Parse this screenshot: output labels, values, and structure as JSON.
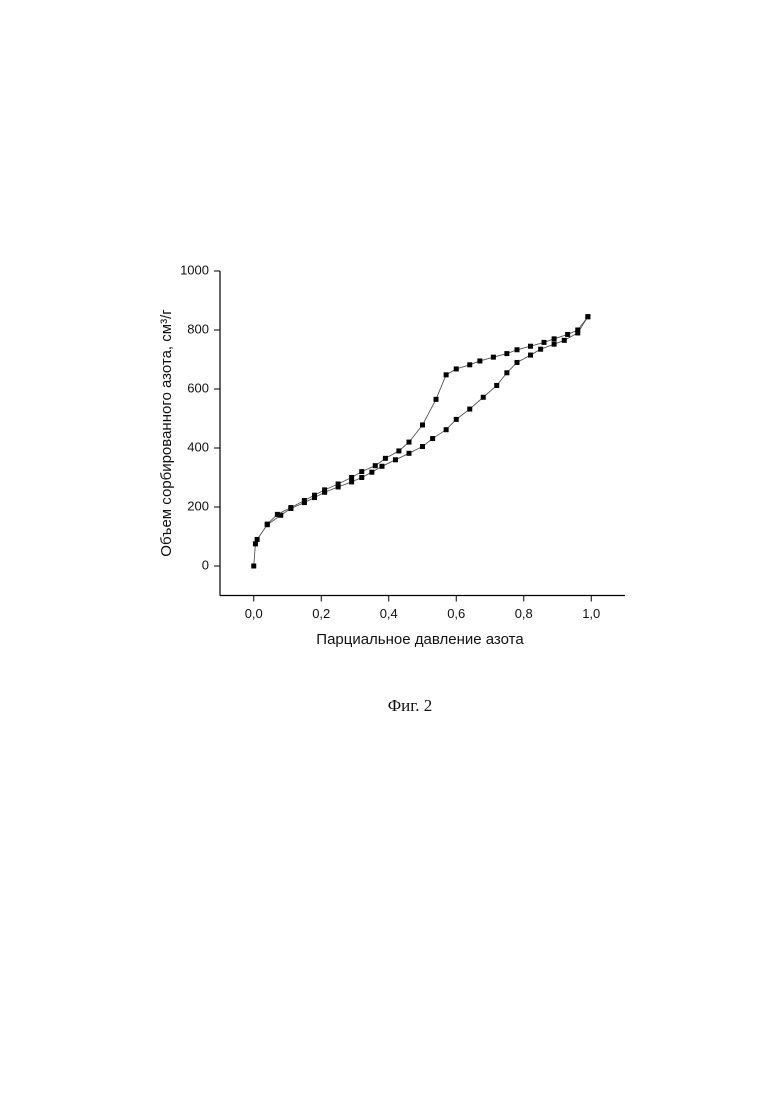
{
  "chart_data": {
    "type": "line",
    "xlabel": "Парциальное давление азота",
    "ylabel": "Объем сорбированного азота, см³/г",
    "caption": "Фиг. 2",
    "xlim": [
      -0.1,
      1.1
    ],
    "ylim": [
      -100,
      1000
    ],
    "xticks": [
      {
        "value": 0,
        "label": "0,0"
      },
      {
        "value": 0.2,
        "label": "0,2"
      },
      {
        "value": 0.4,
        "label": "0,4"
      },
      {
        "value": 0.6,
        "label": "0,6"
      },
      {
        "value": 0.8,
        "label": "0,8"
      },
      {
        "value": 1.0,
        "label": "1,0"
      }
    ],
    "yticks": [
      0,
      200,
      400,
      600,
      800,
      1000
    ],
    "series": [
      {
        "color": "#000000",
        "x": [
          0.0,
          0.005,
          0.01,
          0.04,
          0.08,
          0.11,
          0.15,
          0.18,
          0.21,
          0.25,
          0.29,
          0.32,
          0.35,
          0.38,
          0.42,
          0.46,
          0.5,
          0.53,
          0.57,
          0.6,
          0.64,
          0.68,
          0.72,
          0.75,
          0.78,
          0.82,
          0.85,
          0.89,
          0.92,
          0.96,
          0.99
        ],
        "values": [
          0,
          75,
          90,
          140,
          172,
          195,
          215,
          232,
          250,
          268,
          285,
          300,
          318,
          338,
          360,
          382,
          405,
          432,
          462,
          497,
          532,
          572,
          612,
          655,
          690,
          715,
          735,
          752,
          765,
          790,
          845
        ]
      },
      {
        "color": "#000000",
        "x": [
          0.99,
          0.96,
          0.93,
          0.89,
          0.86,
          0.82,
          0.78,
          0.75,
          0.71,
          0.67,
          0.64,
          0.6,
          0.57,
          0.54,
          0.5,
          0.46,
          0.43,
          0.39,
          0.36,
          0.32,
          0.29,
          0.25,
          0.21,
          0.18,
          0.15,
          0.11,
          0.07,
          0.04
        ],
        "values": [
          845,
          800,
          785,
          770,
          758,
          745,
          733,
          720,
          708,
          695,
          682,
          668,
          648,
          565,
          478,
          420,
          390,
          365,
          340,
          320,
          300,
          278,
          258,
          240,
          222,
          198,
          175,
          142
        ]
      }
    ]
  }
}
